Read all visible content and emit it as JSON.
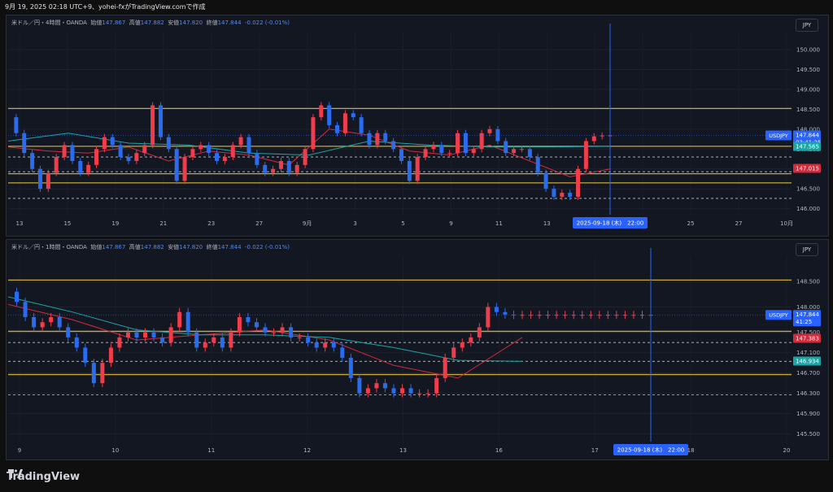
{
  "header": {
    "text": "9月 19, 2025 02:18 UTC+9、yohei-fxがTradingView.comで作成"
  },
  "footer": {
    "brand": "TradingView"
  },
  "colors": {
    "up": "#ef3d4b",
    "down": "#2a6cf0",
    "ma_fast": "#d42a3c",
    "ma_slow": "#1aa5a5",
    "level": "#c8a935",
    "pattern": "#66c93a",
    "accent": "#2962ff"
  },
  "panels": [
    {
      "legend": {
        "symbol": "米ドル／円・4時間・OANDA",
        "open_label": "始値",
        "open": "147.867",
        "high_label": "高値",
        "high": "147.882",
        "low_label": "安値",
        "low": "147.820",
        "close_label": "終値",
        "close": "147.844",
        "change": "-0.022 (-0.01%)"
      },
      "unit": "JPY",
      "crosshair_date": "2025-09-18 (木)　22:00",
      "badges": {
        "symbol": "USDJPY",
        "price": "147.844",
        "countdown": "03:41:25",
        "ma_slow": "147.565",
        "ma_fast": "147.015"
      }
    },
    {
      "legend": {
        "symbol": "米ドル／円・1時間・OANDA",
        "open_label": "始値",
        "open": "147.867",
        "high_label": "高値",
        "high": "147.882",
        "low_label": "安値",
        "low": "147.820",
        "close_label": "終値",
        "close": "147.844",
        "change": "-0.022 (-0.01%)"
      },
      "unit": "JPY",
      "crosshair_date": "2025-09-18 (木)　22:00",
      "badges": {
        "symbol": "USDJPY",
        "price": "147.844",
        "countdown": "41:25",
        "ma_fast": "147.383",
        "ma_slow": "146.934"
      }
    }
  ],
  "chart_data": [
    {
      "type": "line",
      "timeframe": "4時間",
      "ylim": [
        145.85,
        150.45
      ],
      "y_ticks": [
        "150.000",
        "149.500",
        "149.000",
        "148.500",
        "148.000",
        "147.500",
        "147.000",
        "146.500",
        "146.000"
      ],
      "x_ticks": [
        "13",
        "15",
        "19",
        "21",
        "23",
        "27",
        "9月",
        "3",
        "5",
        "9",
        "11",
        "13",
        "17",
        "23",
        "25",
        "27",
        "10月"
      ],
      "levels_solid": [
        148.52,
        147.57,
        146.88,
        146.65
      ],
      "levels_dashed": [
        147.3,
        146.93,
        146.26
      ],
      "series": [
        {
          "name": "close",
          "x": [
            0,
            4,
            8,
            12,
            16,
            20,
            24,
            28,
            32,
            36,
            40,
            44,
            48,
            52,
            56,
            60,
            64,
            68,
            72,
            76,
            80,
            84,
            88,
            92,
            96,
            100,
            104,
            108,
            112,
            116,
            120,
            124,
            128,
            132,
            136,
            140,
            144,
            148,
            152,
            156,
            160,
            164,
            168,
            172,
            176,
            180,
            184,
            188,
            192,
            196,
            200,
            204,
            208,
            212,
            216,
            220,
            224,
            228,
            232,
            236,
            240,
            244,
            248,
            252,
            256,
            260,
            264,
            268,
            272,
            276,
            280,
            284,
            288,
            292,
            296,
            300
          ],
          "values": [
            148.3,
            147.9,
            147.4,
            147.0,
            146.5,
            146.9,
            147.3,
            147.6,
            147.2,
            146.9,
            147.1,
            147.5,
            147.8,
            147.6,
            147.3,
            147.2,
            147.4,
            147.6,
            148.6,
            147.8,
            147.5,
            146.7,
            147.3,
            147.5,
            147.6,
            147.4,
            147.2,
            147.3,
            147.6,
            147.8,
            147.4,
            147.1,
            146.9,
            147.0,
            147.2,
            146.9,
            147.1,
            147.5,
            148.3,
            148.6,
            148.1,
            147.9,
            148.4,
            148.3,
            147.9,
            147.6,
            147.9,
            147.7,
            147.5,
            147.2,
            146.7,
            147.3,
            147.5,
            147.6,
            147.4,
            147.4,
            147.9,
            147.4,
            147.5,
            147.9,
            148.0,
            147.7,
            147.4,
            147.5,
            147.5,
            147.3,
            146.9,
            146.5,
            146.3,
            146.4,
            146.3,
            147.0,
            147.7,
            147.82,
            147.84,
            147.844
          ]
        },
        {
          "name": "",
          "x": [
            0,
            20,
            40,
            60,
            80,
            100,
            120,
            140,
            160,
            180,
            200,
            220,
            240,
            260,
            280,
            300
          ],
          "values": [
            147.55,
            147.45,
            147.4,
            147.55,
            147.2,
            147.45,
            147.35,
            147.1,
            148.0,
            147.85,
            147.45,
            147.35,
            147.6,
            147.2,
            146.8,
            147.0
          ]
        },
        {
          "name": "",
          "x": [
            0,
            30,
            60,
            90,
            120,
            150,
            180,
            210,
            240,
            270,
            300
          ],
          "values": [
            147.7,
            147.9,
            147.65,
            147.6,
            147.4,
            147.35,
            147.7,
            147.6,
            147.55,
            147.55,
            147.57
          ]
        }
      ]
    },
    {
      "type": "line",
      "timeframe": "1時間",
      "ylim": [
        145.35,
        149.0
      ],
      "y_ticks": [
        "148.500",
        "148.000",
        "147.500",
        "147.100",
        "146.700",
        "146.300",
        "145.900",
        "145.500"
      ],
      "x_ticks": [
        "9",
        "10",
        "11",
        "12",
        "13",
        "16",
        "17",
        "18",
        "20"
      ],
      "levels_solid": [
        148.53,
        147.52,
        146.67
      ],
      "levels_dashed": [
        147.3,
        146.93,
        146.27
      ],
      "series": [
        {
          "name": "close",
          "x": [
            0,
            4,
            8,
            12,
            16,
            20,
            24,
            28,
            32,
            36,
            40,
            44,
            48,
            52,
            56,
            60,
            64,
            68,
            72,
            76,
            80,
            84,
            88,
            92,
            96,
            100,
            104,
            108,
            112,
            116,
            120,
            124,
            128,
            132,
            136,
            140,
            144,
            148,
            152,
            156,
            160,
            164,
            168,
            172,
            176,
            180,
            184,
            188,
            192,
            196,
            200,
            204,
            208,
            212,
            216,
            220,
            224,
            228,
            232,
            236,
            240,
            244,
            248,
            252,
            256,
            260,
            264,
            268,
            272,
            276,
            280,
            284,
            288,
            292,
            296,
            300
          ],
          "values": [
            148.3,
            148.1,
            147.8,
            147.6,
            147.7,
            147.8,
            147.6,
            147.4,
            147.2,
            146.9,
            146.5,
            146.9,
            147.2,
            147.4,
            147.5,
            147.4,
            147.5,
            147.4,
            147.3,
            147.6,
            147.9,
            147.5,
            147.2,
            147.3,
            147.4,
            147.2,
            147.5,
            147.8,
            147.7,
            147.6,
            147.5,
            147.5,
            147.6,
            147.4,
            147.4,
            147.3,
            147.2,
            147.3,
            147.2,
            147.0,
            146.6,
            146.3,
            146.4,
            146.5,
            146.4,
            146.3,
            146.4,
            146.3,
            146.3,
            146.3,
            146.6,
            147.0,
            147.2,
            147.3,
            147.4,
            147.6,
            148.0,
            147.9,
            147.85,
            147.84,
            147.844,
            147.844,
            147.844,
            147.844,
            147.844,
            147.844,
            147.844,
            147.844,
            147.844,
            147.844,
            147.844,
            147.844,
            147.844,
            147.844,
            147.844,
            147.844
          ]
        },
        {
          "name": "",
          "x": [
            0,
            30,
            60,
            90,
            120,
            150,
            180,
            210,
            240
          ],
          "values": [
            148.05,
            147.75,
            147.35,
            147.45,
            147.55,
            147.35,
            146.85,
            146.6,
            147.4
          ]
        },
        {
          "name": "",
          "x": [
            0,
            30,
            60,
            90,
            120,
            150,
            180,
            210,
            240
          ],
          "values": [
            148.2,
            147.9,
            147.55,
            147.45,
            147.45,
            147.4,
            147.2,
            146.95,
            146.93
          ]
        }
      ]
    }
  ]
}
